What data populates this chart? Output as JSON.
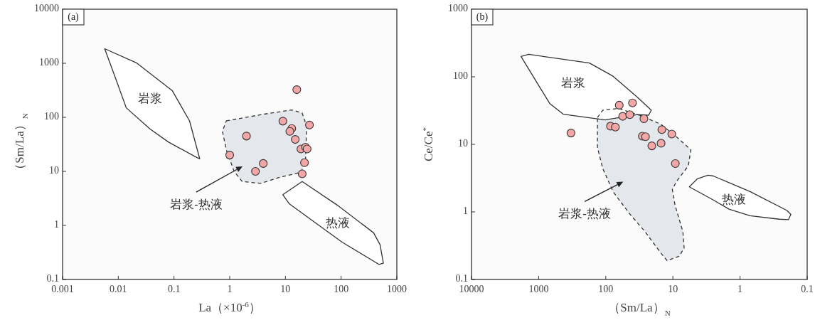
{
  "chart_data": [
    {
      "type": "scatter",
      "title": "(a)",
      "xlabel": "La（×10$^{-6}$）",
      "ylabel": "（Sm/La）$_{N}$",
      "log": "xy",
      "grid": false,
      "xlim": [
        0.001,
        1000
      ],
      "xticks": [
        0.001,
        0.01,
        0.1,
        1,
        10,
        100,
        1000
      ],
      "ylim": [
        0.1,
        10000
      ],
      "yticks": [
        0.1,
        1,
        10,
        100,
        1000,
        10000
      ],
      "series": [
        {
          "type": "area",
          "color": "#e4e8ec",
          "line_style": "dashed",
          "x": [
            0.87,
            4,
            13,
            20,
            24,
            23,
            19,
            7.6,
            3.6,
            1.67,
            1.2,
            0.87,
            0.74,
            0.87
          ],
          "values": [
            86,
            114,
            137,
            120,
            69,
            16,
            9.6,
            7.7,
            6,
            6.5,
            10,
            25,
            55,
            86
          ]
        },
        {
          "type": "area",
          "color": "#ffffff",
          "line_style": "solid",
          "x": [
            0.0057,
            0.0215,
            0.093,
            0.19,
            0.29,
            0.235,
            0.079,
            0.037,
            0.0139,
            0.009,
            0.0057
          ],
          "values": [
            1860,
            1010,
            312,
            86,
            17,
            19,
            35,
            61,
            150,
            516,
            1860
          ]
        },
        {
          "type": "area",
          "color": "#ffffff",
          "line_style": "solid",
          "x": [
            9,
            20,
            84,
            383,
            500,
            573,
            476,
            104,
            11.8,
            9
          ],
          "values": [
            3.7,
            6.5,
            2.4,
            0.73,
            0.44,
            0.2,
            0.19,
            0.49,
            2.5,
            3.7
          ]
        },
        {
          "color": "#f4a6a6",
          "marker": "circle",
          "x": [
            16,
            9,
            13,
            12,
            15,
            27,
            2,
            1,
            4,
            2.9,
            19,
            23,
            24.5,
            22,
            20
          ],
          "values": [
            325,
            85,
            62,
            55,
            39,
            72,
            45,
            20,
            14,
            10,
            26,
            28,
            26,
            14.5,
            9
          ]
        }
      ],
      "annotations": [
        "岩浆",
        "热液",
        "岩浆-热液"
      ]
    },
    {
      "type": "scatter",
      "title": "(b)",
      "xlabel": "（Sm/La）$_{N}$",
      "ylabel": "Ce/Ce$^{*}$",
      "log": "xy",
      "grid": false,
      "xlim": [
        10000,
        0.1
      ],
      "xticks": [
        10000,
        1000,
        100,
        10,
        1,
        0.1
      ],
      "ylim": [
        0.1,
        1000
      ],
      "yticks": [
        0.1,
        1,
        10,
        100,
        1000
      ],
      "series": [
        {
          "type": "area",
          "color": "#e4e8ec",
          "line_style": "dashed",
          "x": [
            133,
            111,
            65,
            31.5,
            15.3,
            8.9,
            5.4,
            5.9,
            8.9,
            10.2,
            9.3,
            7.1,
            6.8,
            8.1,
            12.2,
            15.3,
            26,
            45,
            78,
            111,
            133,
            133
          ],
          "values": [
            25,
            32,
            34,
            27,
            20,
            13,
            8.3,
            4.8,
            2.8,
            2.15,
            1.26,
            0.51,
            0.29,
            0.22,
            0.19,
            0.25,
            0.51,
            0.96,
            2,
            4.4,
            9,
            25
          ]
        },
        {
          "type": "area",
          "color": "#ffffff",
          "line_style": "solid",
          "x": [
            1830,
            1400,
            175,
            78,
            34,
            21,
            23,
            34,
            102,
            430,
            680,
            970,
            1830
          ],
          "values": [
            200,
            215,
            160,
            102,
            50,
            32,
            27,
            27.6,
            23,
            28,
            40,
            71,
            200
          ]
        },
        {
          "type": "area",
          "color": "#ffffff",
          "line_style": "solid",
          "x": [
            5.7,
            4.3,
            3,
            2.5,
            0.71,
            0.2,
            0.175,
            0.19,
            0.26,
            0.71,
            1.46,
            2.5,
            5.7
          ],
          "values": [
            2.35,
            3.1,
            3.5,
            3.4,
            2,
            1.05,
            0.92,
            0.77,
            0.78,
            0.88,
            1.1,
            1.5,
            2.35
          ]
        },
        {
          "color": "#f4a6a6",
          "marker": "circle",
          "x": [
            330,
            85,
            72,
            63,
            40,
            56,
            44,
            27,
            28.5,
            25.6,
            20.6,
            14.6,
            15,
            10.4,
            9.2
          ],
          "values": [
            14.7,
            18.6,
            18,
            38,
            41,
            26,
            27.5,
            24,
            13.2,
            13,
            9.5,
            16.5,
            10.4,
            14.2,
            5.2
          ]
        }
      ],
      "annotations": [
        "岩浆",
        "热液",
        "岩浆-热液"
      ]
    }
  ]
}
